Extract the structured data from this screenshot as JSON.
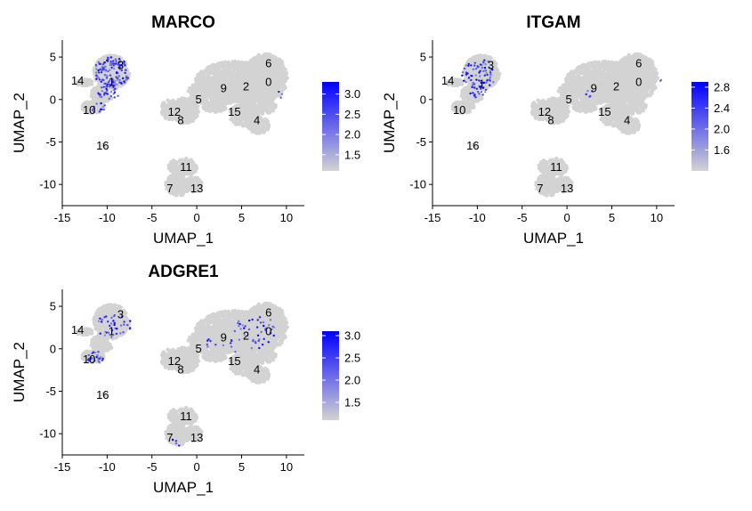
{
  "chart_data": [
    {
      "type": "scatter",
      "title": "MARCO",
      "xlabel": "UMAP_1",
      "ylabel": "UMAP_2",
      "xlim": [
        -15,
        12
      ],
      "ylim": [
        -12.5,
        7
      ],
      "x_ticks": [
        -15,
        -10,
        -5,
        0,
        5,
        10
      ],
      "y_ticks": [
        5,
        0,
        -5,
        -10
      ],
      "legend": {
        "min": 1.1,
        "max": 3.3,
        "ticks": [
          3.0,
          2.5,
          2.0,
          1.5
        ],
        "placement": "right",
        "low_color": "#d3d3d3",
        "high_color": "#0000ff"
      },
      "hotspots": [
        {
          "cx": -9.5,
          "cy": 3.2,
          "rx": 2.0,
          "ry": 1.8,
          "n": 130
        },
        {
          "cx": -9.8,
          "cy": 0.8,
          "rx": 1.2,
          "ry": 0.9,
          "n": 30
        },
        {
          "cx": -11.0,
          "cy": -1.0,
          "rx": 0.9,
          "ry": 0.6,
          "n": 14
        },
        {
          "cx": 9.5,
          "cy": 0.5,
          "rx": 0.5,
          "ry": 0.6,
          "n": 3
        }
      ],
      "clusters": [
        {
          "label": "0",
          "x": 8.0,
          "y": 2.0
        },
        {
          "label": "1",
          "x": -9.5,
          "y": 2.0
        },
        {
          "label": "2",
          "x": 5.5,
          "y": 1.5
        },
        {
          "label": "3",
          "x": -8.5,
          "y": 4.0
        },
        {
          "label": "4",
          "x": 6.7,
          "y": -2.5
        },
        {
          "label": "5",
          "x": 0.2,
          "y": 0.0
        },
        {
          "label": "6",
          "x": 8.0,
          "y": 4.2
        },
        {
          "label": "7",
          "x": -3.0,
          "y": -10.5
        },
        {
          "label": "8",
          "x": -1.8,
          "y": -2.5
        },
        {
          "label": "9",
          "x": 3.0,
          "y": 1.3
        },
        {
          "label": "10",
          "x": -12.0,
          "y": -1.3
        },
        {
          "label": "11",
          "x": -1.2,
          "y": -8.0
        },
        {
          "label": "12",
          "x": -2.5,
          "y": -1.5
        },
        {
          "label": "13",
          "x": 0.0,
          "y": -10.5
        },
        {
          "label": "14",
          "x": -13.3,
          "y": 2.2
        },
        {
          "label": "15",
          "x": 4.2,
          "y": -1.5
        },
        {
          "label": "16",
          "x": -10.5,
          "y": -5.5
        }
      ]
    },
    {
      "type": "scatter",
      "title": "ITGAM",
      "xlabel": "UMAP_1",
      "ylabel": "UMAP_2",
      "xlim": [
        -15,
        12
      ],
      "ylim": [
        -12.5,
        7
      ],
      "x_ticks": [
        -15,
        -10,
        -5,
        0,
        5,
        10
      ],
      "y_ticks": [
        5,
        0,
        -5,
        -10
      ],
      "legend": {
        "min": 1.2,
        "max": 2.9,
        "ticks": [
          2.8,
          2.4,
          2.0,
          1.6
        ],
        "placement": "right",
        "low_color": "#d3d3d3",
        "high_color": "#0000ff"
      },
      "hotspots": [
        {
          "cx": -9.8,
          "cy": 3.0,
          "rx": 2.0,
          "ry": 1.8,
          "n": 70
        },
        {
          "cx": -10.0,
          "cy": 1.0,
          "rx": 1.0,
          "ry": 0.8,
          "n": 18
        },
        {
          "cx": 2.5,
          "cy": 1.0,
          "rx": 1.5,
          "ry": 0.8,
          "n": 5
        },
        {
          "cx": 10.5,
          "cy": 2.0,
          "rx": 0.3,
          "ry": 0.4,
          "n": 2
        }
      ],
      "clusters": [
        {
          "label": "0",
          "x": 8.0,
          "y": 2.0
        },
        {
          "label": "1",
          "x": -9.5,
          "y": 1.8
        },
        {
          "label": "2",
          "x": 5.5,
          "y": 1.5
        },
        {
          "label": "3",
          "x": -8.5,
          "y": 4.0
        },
        {
          "label": "4",
          "x": 6.7,
          "y": -2.5
        },
        {
          "label": "5",
          "x": 0.2,
          "y": 0.0
        },
        {
          "label": "6",
          "x": 8.0,
          "y": 4.2
        },
        {
          "label": "7",
          "x": -3.0,
          "y": -10.5
        },
        {
          "label": "8",
          "x": -1.8,
          "y": -2.5
        },
        {
          "label": "9",
          "x": 3.0,
          "y": 1.3
        },
        {
          "label": "10",
          "x": -12.0,
          "y": -1.3
        },
        {
          "label": "11",
          "x": -1.2,
          "y": -8.0
        },
        {
          "label": "12",
          "x": -2.5,
          "y": -1.5
        },
        {
          "label": "13",
          "x": 0.0,
          "y": -10.5
        },
        {
          "label": "14",
          "x": -13.3,
          "y": 2.2
        },
        {
          "label": "15",
          "x": 4.2,
          "y": -1.5
        },
        {
          "label": "16",
          "x": -10.5,
          "y": -5.5
        }
      ]
    },
    {
      "type": "scatter",
      "title": "ADGRE1",
      "xlabel": "UMAP_1",
      "ylabel": "UMAP_2",
      "xlim": [
        -15,
        12
      ],
      "ylim": [
        -12.5,
        7
      ],
      "x_ticks": [
        -15,
        -10,
        -5,
        0,
        5,
        10
      ],
      "y_ticks": [
        5,
        0,
        -5,
        -10
      ],
      "legend": {
        "min": 1.1,
        "max": 3.1,
        "ticks": [
          3.0,
          2.5,
          2.0,
          1.5
        ],
        "placement": "right",
        "low_color": "#d3d3d3",
        "high_color": "#0000ff"
      },
      "hotspots": [
        {
          "cx": -11.3,
          "cy": -1.0,
          "rx": 1.0,
          "ry": 0.7,
          "n": 25
        },
        {
          "cx": -9.3,
          "cy": 3.0,
          "rx": 2.0,
          "ry": 1.8,
          "n": 35
        },
        {
          "cx": 6.5,
          "cy": 2.0,
          "rx": 2.5,
          "ry": 2.0,
          "n": 45
        },
        {
          "cx": 3.0,
          "cy": 0.5,
          "rx": 2.0,
          "ry": 1.2,
          "n": 12
        },
        {
          "cx": -2.0,
          "cy": -11.0,
          "rx": 0.8,
          "ry": 0.6,
          "n": 4
        }
      ],
      "clusters": [
        {
          "label": "0",
          "x": 8.0,
          "y": 2.0
        },
        {
          "label": "1",
          "x": -9.5,
          "y": 2.0
        },
        {
          "label": "2",
          "x": 5.5,
          "y": 1.5
        },
        {
          "label": "3",
          "x": -8.5,
          "y": 4.0
        },
        {
          "label": "4",
          "x": 6.7,
          "y": -2.5
        },
        {
          "label": "5",
          "x": 0.2,
          "y": 0.0
        },
        {
          "label": "6",
          "x": 8.0,
          "y": 4.2
        },
        {
          "label": "7",
          "x": -3.0,
          "y": -10.5
        },
        {
          "label": "8",
          "x": -1.8,
          "y": -2.5
        },
        {
          "label": "9",
          "x": 3.0,
          "y": 1.3
        },
        {
          "label": "10",
          "x": -12.0,
          "y": -1.3
        },
        {
          "label": "11",
          "x": -1.2,
          "y": -8.0
        },
        {
          "label": "12",
          "x": -2.5,
          "y": -1.5
        },
        {
          "label": "13",
          "x": 0.0,
          "y": -10.5
        },
        {
          "label": "14",
          "x": -13.3,
          "y": 2.2
        },
        {
          "label": "15",
          "x": 4.2,
          "y": -1.5
        },
        {
          "label": "16",
          "x": -10.5,
          "y": -5.5
        }
      ]
    }
  ]
}
